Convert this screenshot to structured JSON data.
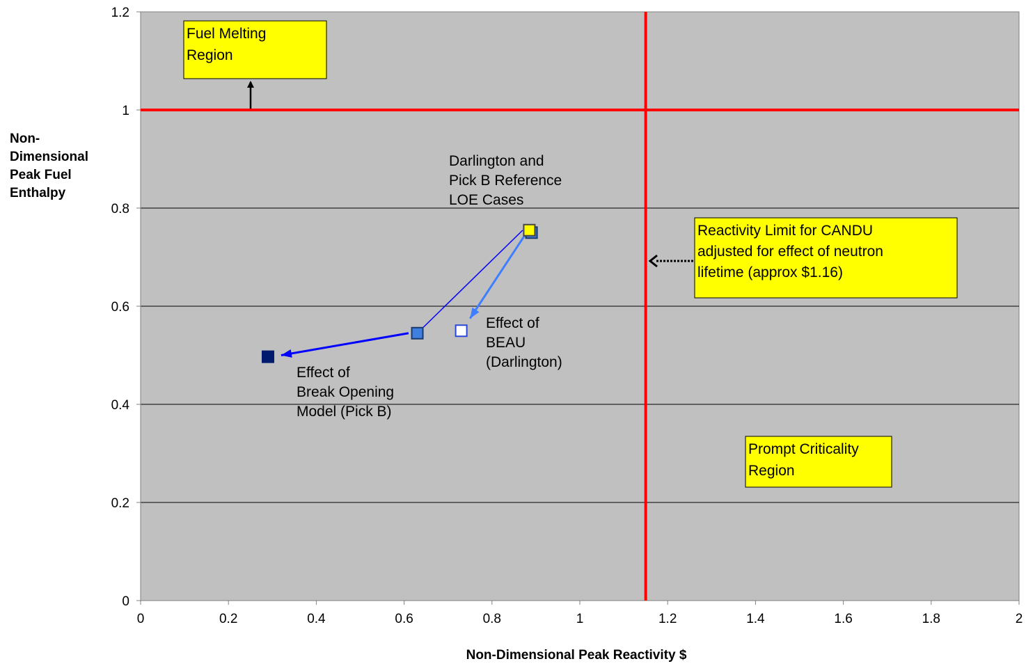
{
  "chart_data": {
    "type": "scatter",
    "title": "",
    "xlabel": "Non-Dimensional Peak Reactivity $",
    "ylabel": [
      "Non-",
      "Dimensional",
      "Peak Fuel",
      "Enthalpy"
    ],
    "xlim": [
      0,
      2
    ],
    "ylim": [
      0,
      1.2
    ],
    "x_ticks": [
      "0",
      "0.2",
      "0.4",
      "0.6",
      "0.8",
      "1",
      "1.2",
      "1.4",
      "1.6",
      "1.8",
      "2"
    ],
    "y_ticks": [
      "0",
      "0.2",
      "0.4",
      "0.6",
      "0.8",
      "1",
      "1.2"
    ],
    "grid": "horizontal",
    "plot_background": "#C0C0C0",
    "limit_color": "#FF0000",
    "limits": {
      "fuel_melting_enthalpy": 1.0,
      "reactivity_limit": 1.15
    },
    "points": [
      {
        "x": 0.89,
        "y": 0.75,
        "fill": "#3F7FE0",
        "stroke": "#1A3A6E"
      },
      {
        "x": 0.885,
        "y": 0.755,
        "fill": "#FFFF00",
        "stroke": "#444444"
      },
      {
        "x": 0.63,
        "y": 0.545,
        "fill": "#3F7FE0",
        "stroke": "#1A3A6E"
      },
      {
        "x": 0.73,
        "y": 0.55,
        "fill": "#FFFFFF",
        "stroke": "#2B47D9"
      },
      {
        "x": 0.29,
        "y": 0.497,
        "fill": "#001A6E",
        "stroke": "#001A6E"
      }
    ],
    "arrows": [
      {
        "from": [
          0.87,
          0.755
        ],
        "to": [
          0.63,
          0.545
        ],
        "color": "#0000FF",
        "width": 1.5,
        "head": false
      },
      {
        "from": [
          0.61,
          0.545
        ],
        "to": [
          0.32,
          0.5
        ],
        "color": "#0000FF",
        "width": 3,
        "head": true
      },
      {
        "from": [
          0.875,
          0.745
        ],
        "to": [
          0.75,
          0.575
        ],
        "color": "#3F7FFF",
        "width": 3,
        "head": true
      }
    ],
    "annotations": [
      {
        "key": "fuel_melting",
        "lines": [
          "Fuel Melting",
          "Region"
        ],
        "boxed": true
      },
      {
        "key": "reactivity_limit",
        "lines": [
          "Reactivity Limit for CANDU",
          "adjusted for effect of neutron",
          "lifetime (approx $1.16)"
        ],
        "boxed": true
      },
      {
        "key": "prompt_criticality",
        "lines": [
          "Prompt Criticality",
          "Region"
        ],
        "boxed": true
      },
      {
        "key": "reference_cases",
        "lines": [
          "Darlington and",
          "Pick B Reference",
          "LOE Cases"
        ],
        "boxed": false
      },
      {
        "key": "beau",
        "lines": [
          "Effect of",
          "BEAU",
          "(Darlington)"
        ],
        "boxed": false
      },
      {
        "key": "break_opening",
        "lines": [
          "Effect of",
          "Break Opening",
          "Model (Pick B)"
        ],
        "boxed": false
      }
    ],
    "box_color": "#FFFF00"
  }
}
